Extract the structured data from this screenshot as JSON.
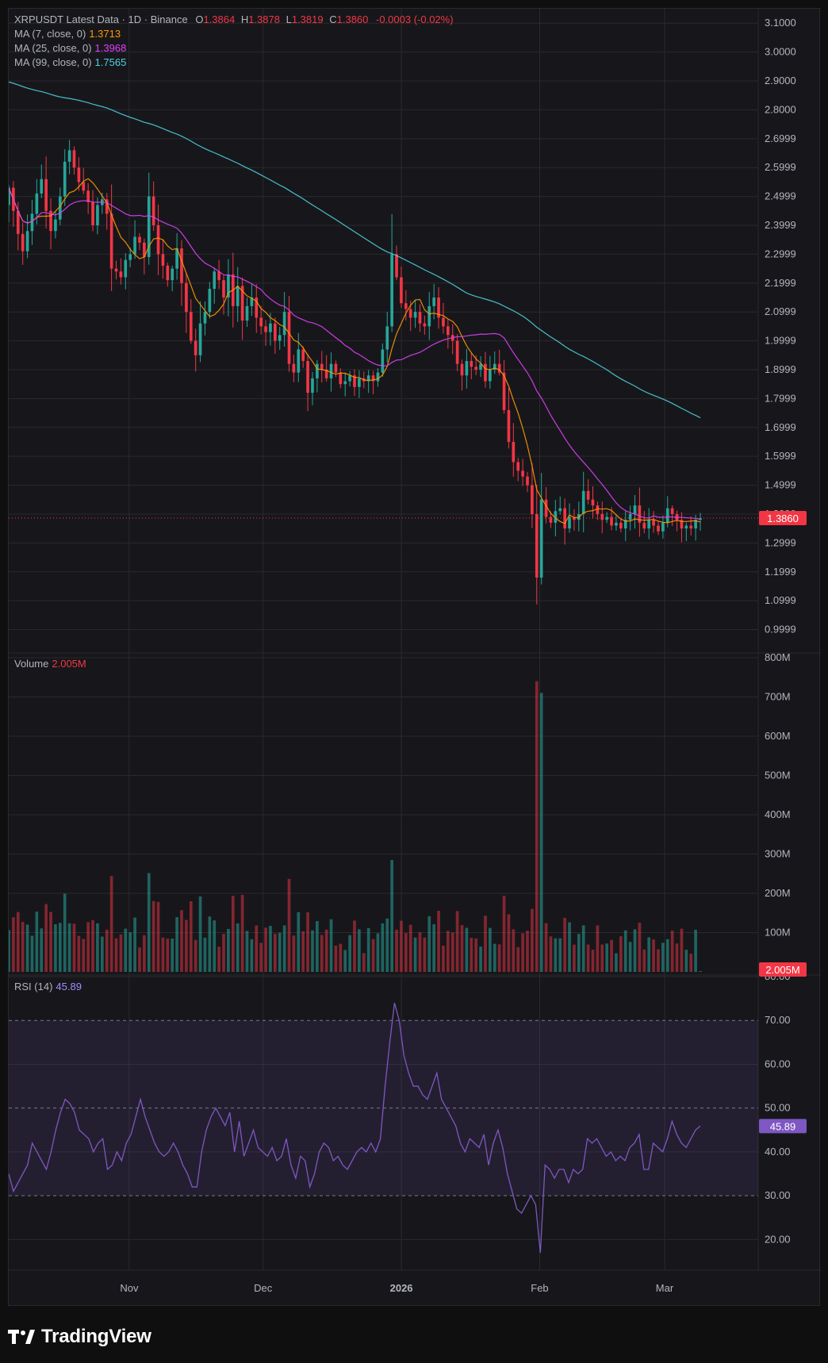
{
  "header": {
    "symbol_line": "XRPUSDT Latest Data · 1D · Binance",
    "ohlc": {
      "open_label": "O",
      "open": "1.3864",
      "high_label": "H",
      "high": "1.3878",
      "low_label": "L",
      "low": "1.3819",
      "close_label": "C",
      "close": "1.3860",
      "change": "-0.0003 (-0.02%)"
    },
    "ma": [
      {
        "label": "MA (7, close, 0)",
        "value": "1.3713",
        "color": "#ff9800"
      },
      {
        "label": "MA (25, close, 0)",
        "value": "1.3968",
        "color": "#e040fb"
      },
      {
        "label": "MA (99, close, 0)",
        "value": "1.7565",
        "color": "#4dd0e1"
      }
    ]
  },
  "volume_legend": {
    "label": "Volume",
    "value": "2.005M"
  },
  "rsi_legend": {
    "label": "RSI (14)",
    "value": "45.89"
  },
  "price_badge": "1.3860",
  "volume_badge": "2.005M",
  "rsi_badge": "45.89",
  "footer": {
    "brand": "TradingView"
  },
  "colors": {
    "up": "#26a69a",
    "down": "#f23645",
    "rsi": "#7e57c2",
    "grid": "#2a2a2e"
  },
  "chart_data": {
    "type": "candlestick",
    "price_axis": {
      "ylim": [
        0.93,
        3.15
      ],
      "ticks": [
        "0.9999",
        "1.0999",
        "1.1999",
        "1.2999",
        "1.3999",
        "1.4999",
        "1.5999",
        "1.6999",
        "1.7999",
        "1.8999",
        "1.9999",
        "2.0999",
        "2.1999",
        "2.2999",
        "2.3999",
        "2.4999",
        "2.5999",
        "2.6999",
        "2.8000",
        "2.9000",
        "3.0000",
        "3.1000"
      ]
    },
    "volume_axis": {
      "ylim": [
        0,
        800000000
      ],
      "ticks": [
        "100M",
        "200M",
        "300M",
        "400M",
        "500M",
        "600M",
        "700M",
        "800M"
      ]
    },
    "rsi_axis": {
      "ylim": [
        13,
        80
      ],
      "ticks": [
        "20.00",
        "30.00",
        "40.00",
        "50.00",
        "60.00",
        "70.00",
        "80.00"
      ],
      "band": [
        30,
        70
      ],
      "midline": 50
    },
    "x_labels": [
      "Nov",
      "Dec",
      "2026",
      "Feb",
      "Mar"
    ],
    "x_label_dates": [
      "2025-11-01",
      "2025-12-01",
      "2026-01-01",
      "2026-02-01",
      "2026-03-01"
    ],
    "first_date": "2025-10-05",
    "last_date": "2026-03-09",
    "closes": [
      2.53,
      2.45,
      2.37,
      2.31,
      2.38,
      2.44,
      2.51,
      2.56,
      2.45,
      2.38,
      2.42,
      2.5,
      2.62,
      2.66,
      2.6,
      2.55,
      2.52,
      2.48,
      2.4,
      2.47,
      2.49,
      2.44,
      2.25,
      2.24,
      2.22,
      2.28,
      2.3,
      2.36,
      2.34,
      2.29,
      2.5,
      2.4,
      2.3,
      2.26,
      2.21,
      2.25,
      2.32,
      2.2,
      2.1,
      2.0,
      1.95,
      2.06,
      2.1,
      2.18,
      2.24,
      2.21,
      2.15,
      2.23,
      2.12,
      2.19,
      2.07,
      2.12,
      2.15,
      2.08,
      2.05,
      2.03,
      2.06,
      2.0,
      2.02,
      2.1,
      1.92,
      1.89,
      1.97,
      1.93,
      1.82,
      1.87,
      1.92,
      1.9,
      1.87,
      1.92,
      1.89,
      1.85,
      1.86,
      1.88,
      1.84,
      1.87,
      1.86,
      1.88,
      1.86,
      1.89,
      1.97,
      2.05,
      2.3,
      2.22,
      2.13,
      2.11,
      2.08,
      2.1,
      2.06,
      2.05,
      2.12,
      2.15,
      2.08,
      2.05,
      2.02,
      2.0,
      1.92,
      1.88,
      1.93,
      1.91,
      1.9,
      1.92,
      1.86,
      1.9,
      1.92,
      1.89,
      1.76,
      1.65,
      1.58,
      1.55,
      1.53,
      1.5,
      1.4,
      1.18,
      1.45,
      1.39,
      1.37,
      1.41,
      1.42,
      1.35,
      1.39,
      1.38,
      1.4,
      1.48,
      1.45,
      1.43,
      1.4,
      1.38,
      1.39,
      1.36,
      1.37,
      1.35,
      1.38,
      1.4,
      1.43,
      1.37,
      1.35,
      1.38,
      1.36,
      1.34,
      1.37,
      1.42,
      1.4,
      1.38,
      1.35,
      1.36,
      1.35,
      1.38,
      1.386
    ],
    "ma7_last": 1.3713,
    "ma25_last": 1.3968,
    "ma99_last": 1.7565,
    "volume_peak": 740000000,
    "volume_last": 2005000,
    "rsi": [
      35,
      31,
      33,
      35,
      37,
      42,
      40,
      38,
      36,
      40,
      45,
      49,
      52,
      51,
      49,
      45,
      44,
      43,
      40,
      42,
      43,
      36,
      37,
      40,
      38,
      42,
      44,
      48,
      52,
      48,
      45,
      42,
      40,
      39,
      40,
      42,
      40,
      37,
      35,
      32,
      32,
      40,
      45,
      48,
      50,
      48,
      46,
      49,
      40,
      47,
      39,
      42,
      45,
      41,
      40,
      39,
      41,
      38,
      39,
      43,
      37,
      34,
      39,
      38,
      32,
      35,
      40,
      42,
      41,
      38,
      39,
      37,
      36,
      38,
      40,
      41,
      40,
      42,
      40,
      43,
      55,
      65,
      74,
      70,
      62,
      58,
      55,
      55,
      53,
      52,
      55,
      58,
      52,
      50,
      48,
      46,
      42,
      40,
      43,
      42,
      41,
      44,
      37,
      42,
      45,
      41,
      35,
      31,
      27,
      26,
      28,
      30,
      28,
      17,
      37,
      36,
      34,
      36,
      36,
      33,
      36,
      35,
      36,
      43,
      42,
      43,
      41,
      39,
      40,
      38,
      39,
      38,
      41,
      42,
      44,
      36,
      36,
      42,
      41,
      40,
      43,
      47,
      44,
      42,
      41,
      43,
      45,
      45.89
    ]
  }
}
